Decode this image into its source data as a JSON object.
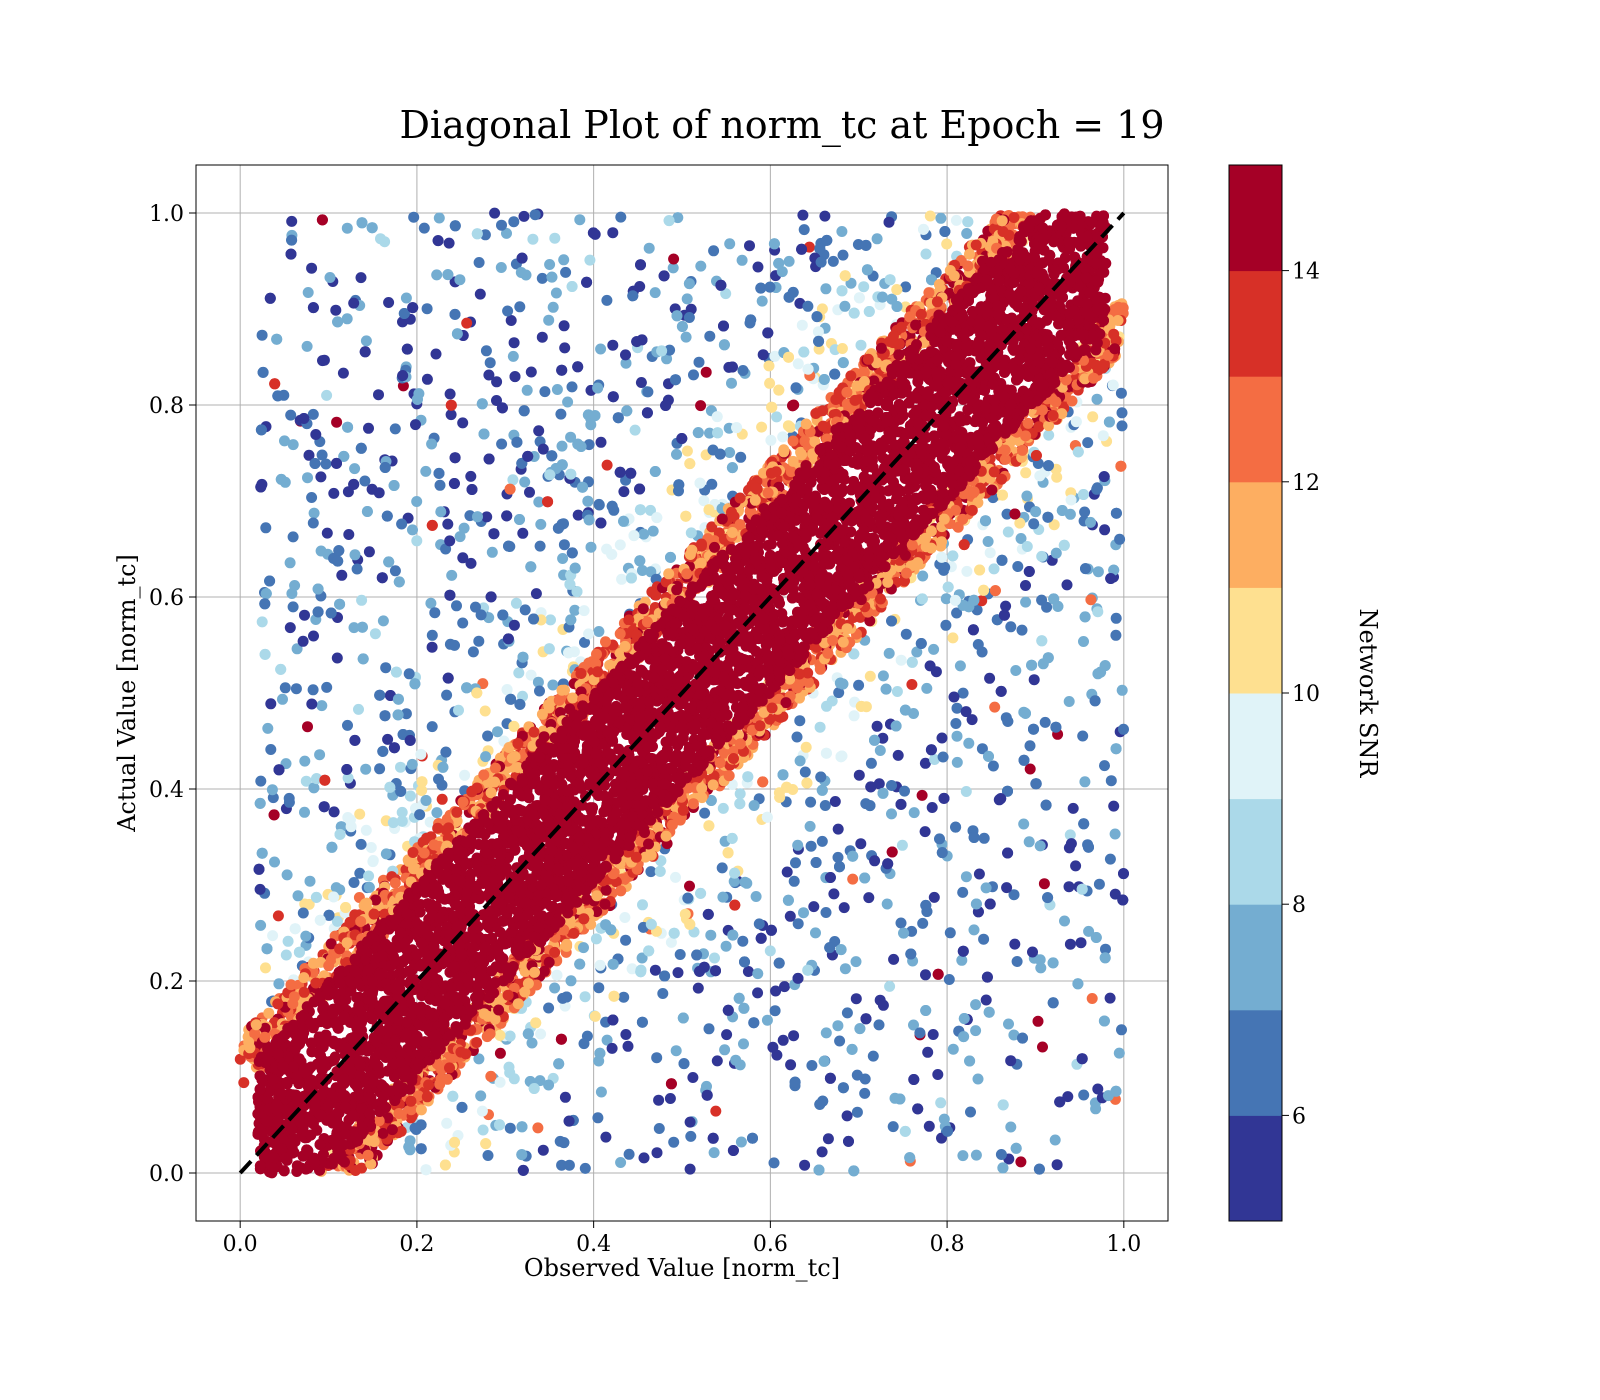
{
  "chart_data": {
    "type": "scatter",
    "title": "Diagonal Plot of norm_tc at Epoch = 19",
    "xlabel": "Observed Value [norm_tc]",
    "ylabel": "Actual Value [norm_tc]",
    "xlim": [
      -0.05,
      1.05
    ],
    "ylim": [
      -0.05,
      1.05
    ],
    "xticks": [
      "0.0",
      "0.2",
      "0.4",
      "0.6",
      "0.8",
      "1.0"
    ],
    "yticks": [
      "0.0",
      "0.2",
      "0.4",
      "0.6",
      "0.8",
      "1.0"
    ],
    "grid": true,
    "reference_line": {
      "style": "dashed",
      "color": "#000000",
      "from": [
        0,
        0
      ],
      "to": [
        1,
        1
      ]
    },
    "colorbar": {
      "label": "Network SNR",
      "range": [
        5,
        15
      ],
      "ticks": [
        "6",
        "8",
        "10",
        "12",
        "14"
      ],
      "colors": [
        "#313695",
        "#4575b4",
        "#74add1",
        "#abd9e9",
        "#e0f3f8",
        "#fee090",
        "#fdae61",
        "#f46d43",
        "#d73027",
        "#a50026"
      ]
    },
    "points_description": "Dense band of high-SNR (>14) points around y = x with width of about ±0.1, surrounded by lower-SNR points scattered widely above and below the diagonal across the full [0, 1] range.",
    "band_half_width": 0.1
  }
}
